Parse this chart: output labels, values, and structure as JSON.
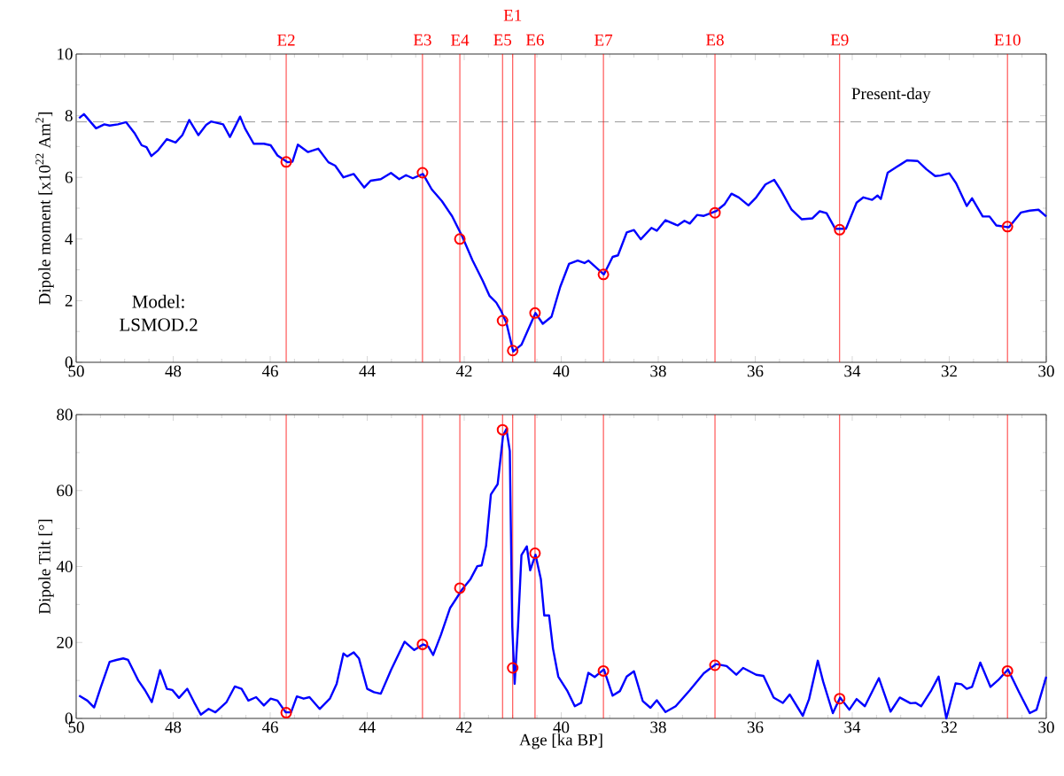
{
  "chart_data": [
    {
      "type": "line",
      "xlim": [
        50,
        30
      ],
      "xticks": [
        50,
        48,
        46,
        44,
        42,
        40,
        38,
        36,
        34,
        32,
        30
      ],
      "ylim": [
        0,
        10
      ],
      "yticks": [
        0,
        2,
        4,
        6,
        8,
        10
      ],
      "ylabel": "Dipole moment [x10$^{22}$ Am$^{2}$]",
      "series": [
        {
          "color": "#0000ff",
          "x": [
            49.94,
            49.84,
            49.59,
            49.42,
            49.31,
            49.14,
            48.97,
            48.79,
            48.65,
            48.55,
            48.45,
            48.31,
            48.13,
            47.95,
            47.81,
            47.67,
            47.48,
            47.32,
            47.22,
            46.97,
            46.83,
            46.62,
            46.52,
            46.34,
            46.13,
            45.99,
            45.85,
            45.64,
            45.54,
            45.43,
            45.22,
            45.01,
            44.8,
            44.66,
            44.49,
            44.28,
            44.06,
            43.93,
            43.72,
            43.51,
            43.34,
            43.2,
            43.06,
            42.85,
            42.67,
            42.46,
            42.25,
            42.04,
            41.83,
            41.62,
            41.48,
            41.34,
            41.24,
            41.13,
            40.99,
            40.82,
            40.53,
            40.38,
            40.2,
            40.02,
            39.84,
            39.66,
            39.52,
            39.44,
            39.12,
            38.94,
            38.83,
            38.65,
            38.5,
            38.36,
            38.14,
            38.03,
            37.85,
            37.6,
            37.46,
            37.35,
            37.2,
            37.06,
            36.81,
            36.63,
            36.49,
            36.34,
            36.14,
            35.98,
            35.79,
            35.61,
            35.47,
            35.25,
            35.04,
            34.82,
            34.67,
            34.53,
            34.35,
            34.13,
            33.91,
            33.77,
            33.59,
            33.48,
            33.41,
            33.27,
            33.08,
            32.87,
            32.65,
            32.47,
            32.29,
            32.18,
            32.0,
            31.86,
            31.64,
            31.53,
            31.31,
            31.17,
            31.03,
            30.77,
            30.52,
            30.34,
            30.16,
            30.0
          ],
          "values": [
            7.92,
            8.05,
            7.59,
            7.72,
            7.68,
            7.72,
            7.79,
            7.42,
            7.04,
            6.98,
            6.69,
            6.88,
            7.24,
            7.13,
            7.37,
            7.86,
            7.37,
            7.7,
            7.81,
            7.72,
            7.31,
            7.97,
            7.59,
            7.09,
            7.09,
            7.04,
            6.71,
            6.49,
            6.51,
            7.06,
            6.82,
            6.93,
            6.49,
            6.38,
            6.0,
            6.11,
            5.67,
            5.89,
            5.94,
            6.14,
            5.94,
            6.07,
            5.97,
            6.11,
            5.61,
            5.23,
            4.74,
            4.08,
            3.31,
            2.65,
            2.16,
            1.94,
            1.67,
            1.28,
            0.35,
            0.57,
            1.6,
            1.25,
            1.48,
            2.45,
            3.19,
            3.3,
            3.22,
            3.3,
            2.85,
            3.42,
            3.47,
            4.21,
            4.29,
            3.99,
            4.36,
            4.27,
            4.61,
            4.44,
            4.59,
            4.5,
            4.78,
            4.75,
            4.9,
            5.13,
            5.47,
            5.35,
            5.09,
            5.35,
            5.77,
            5.92,
            5.58,
            4.95,
            4.64,
            4.67,
            4.9,
            4.84,
            4.33,
            4.33,
            5.18,
            5.35,
            5.27,
            5.41,
            5.3,
            6.15,
            6.34,
            6.55,
            6.53,
            6.26,
            6.04,
            6.06,
            6.13,
            5.81,
            5.07,
            5.32,
            4.73,
            4.73,
            4.44,
            4.38,
            4.86,
            4.92,
            4.95,
            4.73
          ]
        },
        {
          "type": "scatter",
          "color": "#ff0000",
          "marker": "circle",
          "x": [
            45.67,
            42.86,
            42.09,
            41.21,
            41.0,
            40.54,
            39.13,
            36.83,
            34.26,
            30.8
          ],
          "values": [
            6.5,
            6.15,
            4.0,
            1.35,
            0.38,
            1.6,
            2.85,
            4.85,
            4.3,
            4.4
          ]
        }
      ],
      "ref_lines": [
        {
          "axis": "y",
          "value": 7.8,
          "label": "Present-day",
          "color": "#808080",
          "line_style": "dashed"
        },
        {
          "axis": "x",
          "value": 45.67,
          "label": "E2",
          "color": "#ff0000"
        },
        {
          "axis": "x",
          "value": 42.86,
          "label": "E3",
          "color": "#ff0000"
        },
        {
          "axis": "x",
          "value": 42.09,
          "label": "E4",
          "color": "#ff0000"
        },
        {
          "axis": "x",
          "value": 41.21,
          "label": "E5",
          "color": "#ff0000"
        },
        {
          "axis": "x",
          "value": 41.0,
          "label": "E1",
          "color": "#ff0000"
        },
        {
          "axis": "x",
          "value": 40.54,
          "label": "E6",
          "color": "#ff0000"
        },
        {
          "axis": "x",
          "value": 39.13,
          "label": "E7",
          "color": "#ff0000"
        },
        {
          "axis": "x",
          "value": 36.83,
          "label": "E8",
          "color": "#ff0000"
        },
        {
          "axis": "x",
          "value": 34.26,
          "label": "E9",
          "color": "#ff0000"
        },
        {
          "axis": "x",
          "value": 30.8,
          "label": "E10",
          "color": "#ff0000"
        }
      ],
      "annotations": [
        "Model: LSMOD.2"
      ]
    },
    {
      "type": "line",
      "xlim": [
        50,
        30
      ],
      "xticks": [
        50,
        48,
        46,
        44,
        42,
        40,
        38,
        36,
        34,
        32,
        30
      ],
      "ylim": [
        0,
        80
      ],
      "yticks": [
        0,
        20,
        40,
        60,
        80
      ],
      "xlabel": "Age [ka BP]",
      "ylabel": "Dipole Tilt [°]",
      "series": [
        {
          "color": "#0000ff",
          "x": [
            49.94,
            49.77,
            49.63,
            49.49,
            49.31,
            49.17,
            49.03,
            48.93,
            48.72,
            48.58,
            48.44,
            48.27,
            48.13,
            48.02,
            47.88,
            47.71,
            47.57,
            47.43,
            47.27,
            47.13,
            46.9,
            46.73,
            46.59,
            46.45,
            46.29,
            46.13,
            45.99,
            45.85,
            45.68,
            45.57,
            45.45,
            45.31,
            45.19,
            44.98,
            44.77,
            44.63,
            44.49,
            44.41,
            44.28,
            44.17,
            44.0,
            43.86,
            43.72,
            43.51,
            43.23,
            43.03,
            42.85,
            42.74,
            42.64,
            42.48,
            42.29,
            42.04,
            41.87,
            41.73,
            41.64,
            41.55,
            41.45,
            41.31,
            41.2,
            41.13,
            41.06,
            41.01,
            40.96,
            40.89,
            40.82,
            40.71,
            40.64,
            40.53,
            40.42,
            40.35,
            40.25,
            40.17,
            40.06,
            39.88,
            39.72,
            39.59,
            39.44,
            39.31,
            39.12,
            38.94,
            38.79,
            38.65,
            38.5,
            38.32,
            38.16,
            38.03,
            37.85,
            37.64,
            37.35,
            37.06,
            36.81,
            36.59,
            36.39,
            36.25,
            35.98,
            35.83,
            35.62,
            35.43,
            35.29,
            35.02,
            34.89,
            34.71,
            34.6,
            34.4,
            34.25,
            34.06,
            33.91,
            33.74,
            33.45,
            33.21,
            33.02,
            32.8,
            32.69,
            32.58,
            32.37,
            32.22,
            32.06,
            31.87,
            31.75,
            31.64,
            31.53,
            31.36,
            31.15,
            30.99,
            30.79,
            30.56,
            30.34,
            30.2,
            30.0
          ],
          "values": [
            6.0,
            4.7,
            2.9,
            8.3,
            14.9,
            15.4,
            15.8,
            15.4,
            10.0,
            7.4,
            4.3,
            12.7,
            7.8,
            7.5,
            5.4,
            7.8,
            4.3,
            1.0,
            2.5,
            1.6,
            4.3,
            8.4,
            7.8,
            4.7,
            5.6,
            3.4,
            5.2,
            4.7,
            1.6,
            1.6,
            5.8,
            5.2,
            5.6,
            2.5,
            5.2,
            9.1,
            17.1,
            16.3,
            17.4,
            15.8,
            7.8,
            6.9,
            6.5,
            12.7,
            20.2,
            18.0,
            19.5,
            18.9,
            16.7,
            22.0,
            29.1,
            34.0,
            36.7,
            40.1,
            40.3,
            45.4,
            59.0,
            61.7,
            74.4,
            76.2,
            70.4,
            24.3,
            9.1,
            24.3,
            43.0,
            45.3,
            39.0,
            43.1,
            36.7,
            27.1,
            27.1,
            18.4,
            11.0,
            7.4,
            3.2,
            4.1,
            12.0,
            10.9,
            12.9,
            6.0,
            7.2,
            11.0,
            12.4,
            4.6,
            2.8,
            4.8,
            1.7,
            3.2,
            7.4,
            11.9,
            14.3,
            13.8,
            11.5,
            13.3,
            11.5,
            11.2,
            5.5,
            4.1,
            6.3,
            0.7,
            5.1,
            15.2,
            9.7,
            1.4,
            5.5,
            2.3,
            5.1,
            3.2,
            10.6,
            1.8,
            5.5,
            4.0,
            4.1,
            3.2,
            7.4,
            11.0,
            0.0,
            9.2,
            9.0,
            7.8,
            8.3,
            14.7,
            8.3,
            10.1,
            12.9,
            6.9,
            1.4,
            2.3,
            11.0
          ]
        },
        {
          "type": "scatter",
          "color": "#ff0000",
          "marker": "circle",
          "x": [
            45.67,
            42.86,
            42.09,
            41.21,
            41.0,
            40.54,
            39.13,
            36.83,
            34.26,
            30.8
          ],
          "values": [
            1.5,
            19.5,
            34.3,
            76,
            13.3,
            43.5,
            12.5,
            14,
            5.2,
            12.5
          ]
        }
      ],
      "ref_lines": [
        {
          "axis": "x",
          "value": 45.67,
          "color": "#ff0000"
        },
        {
          "axis": "x",
          "value": 42.86,
          "color": "#ff0000"
        },
        {
          "axis": "x",
          "value": 42.09,
          "color": "#ff0000"
        },
        {
          "axis": "x",
          "value": 41.21,
          "color": "#ff0000"
        },
        {
          "axis": "x",
          "value": 41.0,
          "color": "#ff0000"
        },
        {
          "axis": "x",
          "value": 40.54,
          "color": "#ff0000"
        },
        {
          "axis": "x",
          "value": 39.13,
          "color": "#ff0000"
        },
        {
          "axis": "x",
          "value": 36.83,
          "color": "#ff0000"
        },
        {
          "axis": "x",
          "value": 34.26,
          "color": "#ff0000"
        },
        {
          "axis": "x",
          "value": 30.8,
          "color": "#ff0000"
        }
      ]
    }
  ]
}
